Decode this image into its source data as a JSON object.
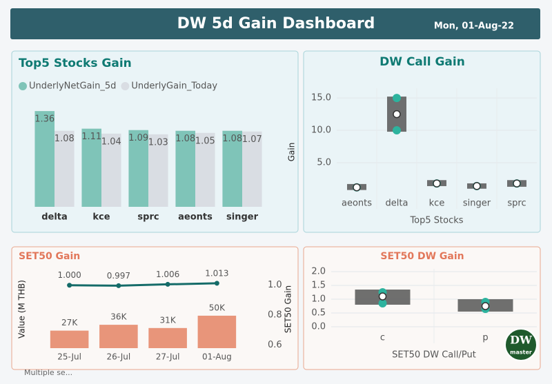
{
  "header": {
    "title": "DW 5d Gain Dashboard",
    "date": "Mon, 01-Aug-22"
  },
  "chart_data": [
    {
      "type": "bar",
      "title": "Top5 Stocks Gain",
      "categories": [
        "delta",
        "kce",
        "sprc",
        "aeonts",
        "singer"
      ],
      "series": [
        {
          "name": "UnderlyNetGain_5d",
          "color": "#7fc4b8",
          "values": [
            1.36,
            1.11,
            1.09,
            1.08,
            1.08
          ]
        },
        {
          "name": "UnderlyGain_Today",
          "color": "#d9dde3",
          "values": [
            1.08,
            1.04,
            1.03,
            1.05,
            1.07
          ]
        }
      ],
      "legend": "top-left"
    },
    {
      "type": "box",
      "title": "DW Call Gain",
      "ylabel": "Gain",
      "xlabel": "Top5 Stocks",
      "categories": [
        "aeonts",
        "delta",
        "kce",
        "singer",
        "sprc"
      ],
      "q1": [
        1.0,
        10,
        1.6,
        1.2,
        1.5
      ],
      "q3": [
        1.5,
        15,
        2.1,
        1.6,
        2.1
      ],
      "mean": [
        1.2,
        12.5,
        1.8,
        1.4,
        1.8
      ],
      "points": [
        [
          1.2
        ],
        [
          10,
          15
        ],
        [
          1.8
        ],
        [
          1.4
        ],
        [
          1.8
        ]
      ],
      "box_color": "#5f5f5f",
      "point_color": "#2db39e",
      "ylim": [
        0,
        16.5
      ],
      "yticks": [
        {
          "value": 5,
          "label": "5.0"
        },
        {
          "value": 10,
          "label": "10.0"
        },
        {
          "value": 15,
          "label": "15.0"
        }
      ],
      "grid": true
    },
    {
      "type": "combo",
      "title": "SET50 Gain",
      "ylabel": "Value (M THB)",
      "y2label": "SET50 Gain",
      "categories": [
        "25-Jul",
        "26-Jul",
        "27-Jul",
        "01-Aug"
      ],
      "series": [
        {
          "type": "bar",
          "color": "#e8957a",
          "values": [
            27000,
            36000,
            31000,
            50000
          ],
          "value_labels": [
            "27K",
            "36K",
            "31K",
            "50K"
          ]
        },
        {
          "type": "line",
          "axis": "y2",
          "color": "#146b68",
          "values": [
            1.0,
            0.997,
            1.006,
            1.013
          ],
          "value_labels": [
            "1.000",
            "0.997",
            "1.006",
            "1.013"
          ]
        }
      ],
      "ylim": [
        0,
        120000
      ],
      "y2lim": [
        0.58,
        1.1
      ],
      "y2ticks": [
        0.6,
        0.8,
        {
          "value": 1,
          "label": "1.0"
        }
      ]
    },
    {
      "type": "box",
      "title": "SET50 DW Gain",
      "xlabel": "SET50 DW Call/Put",
      "categories": [
        "c",
        "p"
      ],
      "q1": [
        0.85,
        0.6
      ],
      "q3": [
        1.3,
        0.95
      ],
      "mean": [
        1.1,
        0.75
      ],
      "points": [
        [
          0.85,
          1.25
        ],
        [
          0.65,
          0.9
        ]
      ],
      "box_color": "#5f5f5f",
      "point_color": "#2db39e",
      "ylim": [
        -0.1,
        2.1
      ],
      "yticks": [
        {
          "value": 0,
          "label": "0.0"
        },
        0.5,
        {
          "value": 1,
          "label": "1.0"
        },
        1.5,
        {
          "value": 2,
          "label": "2.0"
        }
      ],
      "grid": true
    }
  ],
  "logo": {
    "text": "DW",
    "subtext": "master"
  },
  "filter": "Multiple se..."
}
